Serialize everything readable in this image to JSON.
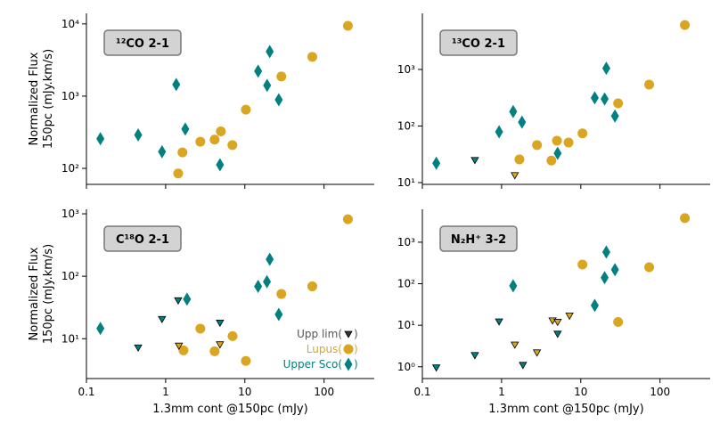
{
  "chart_data": [
    {
      "type": "scatter",
      "panel_label": "¹²CO 2-1",
      "ylabel": [
        "Normalized Flux",
        "150pc (mJy.km/s)"
      ],
      "log_x": true,
      "log_y": true,
      "xlim": [
        0.1,
        430
      ],
      "ylim": [
        60,
        14000
      ],
      "xticks": [
        0.1,
        1,
        10,
        100
      ],
      "show_xtick_labels": false,
      "yticks": [
        {
          "value": 100,
          "label": "10²"
        },
        {
          "value": 1000,
          "label": "10³"
        },
        {
          "value": 10000,
          "label": "10⁴"
        }
      ],
      "series": [
        {
          "marker": "circle",
          "color": "#daa520",
          "x": [
            1.44,
            1.63,
            2.74,
            4.15,
            4.98,
            6.96,
            10.3,
            28.9,
            71,
            200
          ],
          "values": [
            85,
            166,
            234,
            250,
            325,
            210,
            650,
            1870,
            3500,
            9400
          ]
        },
        {
          "marker": "diamond",
          "color": "#008080",
          "x": [
            0.15,
            0.45,
            0.9,
            1.36,
            1.77,
            4.85,
            14.7,
            19.1,
            20.6,
            26.8
          ],
          "values": [
            257,
            290,
            170,
            1450,
            350,
            112,
            2220,
            1410,
            4140,
            890
          ]
        }
      ]
    },
    {
      "type": "scatter",
      "panel_label": "¹³CO 2-1",
      "log_x": true,
      "log_y": true,
      "xlim": [
        0.1,
        430
      ],
      "ylim": [
        9.3,
        9800
      ],
      "xticks": [
        0.1,
        1,
        10,
        100
      ],
      "show_xtick_labels": false,
      "yticks": [
        {
          "value": 10,
          "label": "10¹"
        },
        {
          "value": 100,
          "label": "10²"
        },
        {
          "value": 1000,
          "label": "10³"
        }
      ],
      "series": [
        {
          "marker": "circle",
          "color": "#daa520",
          "x": [
            1.68,
            2.8,
            4.26,
            5,
            7,
            10.5,
            29.6,
            73,
            206
          ],
          "values": [
            25.7,
            46,
            24.5,
            55,
            51,
            74,
            252,
            540,
            6100
          ]
        },
        {
          "marker": "diamond",
          "color": "#008080",
          "x": [
            0.15,
            0.93,
            1.4,
            1.81,
            5.1,
            15,
            20,
            21,
            27
          ],
          "values": [
            22,
            79,
            180,
            117,
            33,
            315,
            300,
            1050,
            150
          ]
        },
        {
          "marker": "triangle",
          "color": "#daa520",
          "x": [
            1.47
          ],
          "values": [
            13.5
          ]
        },
        {
          "marker": "triangle",
          "color": "#008080",
          "x": [
            0.46
          ],
          "values": [
            25
          ]
        }
      ]
    },
    {
      "type": "scatter",
      "panel_label": "C¹⁸O 2-1",
      "ylabel": [
        "Normalized Flux",
        "150pc (mJy.km/s)"
      ],
      "xlabel": "1.3mm cont @150pc (mJy)",
      "log_x": true,
      "log_y": true,
      "xlim": [
        0.1,
        430
      ],
      "ylim": [
        2.3,
        1180
      ],
      "xticks": [
        0.1,
        1,
        10,
        100
      ],
      "show_xtick_labels": true,
      "yticks": [
        {
          "value": 10,
          "label": "10¹"
        },
        {
          "value": 100,
          "label": "10²"
        },
        {
          "value": 1000,
          "label": "10³"
        }
      ],
      "series": [
        {
          "marker": "circle",
          "color": "#daa520",
          "x": [
            1.68,
            2.74,
            4.15,
            7,
            10.3,
            28.9,
            71,
            200
          ],
          "values": [
            6.5,
            14.5,
            6.3,
            11,
            4.4,
            52,
            69,
            820
          ]
        },
        {
          "marker": "diamond",
          "color": "#008080",
          "x": [
            0.15,
            1.86,
            14.7,
            19,
            20.6,
            26.8
          ],
          "values": [
            14.6,
            43,
            69,
            82,
            187,
            24.5
          ]
        },
        {
          "marker": "triangle",
          "color": "#daa520",
          "x": [
            1.47,
            4.85
          ],
          "values": [
            7.7,
            8.1
          ]
        },
        {
          "marker": "triangle",
          "color": "#008080",
          "x": [
            0.45,
            0.9,
            1.44,
            4.85
          ],
          "values": [
            7.2,
            20.6,
            41,
            18
          ]
        }
      ],
      "legend": [
        {
          "label": "Upp lim(",
          "suffix": ")",
          "marker": "triangle",
          "color": "#555555"
        },
        {
          "label": "Lupus(",
          "suffix": ")",
          "marker": "circle",
          "color": "#daa520"
        },
        {
          "label": "Upper Sco(",
          "suffix": ")",
          "marker": "diamond",
          "color": "#008080"
        }
      ]
    },
    {
      "type": "scatter",
      "panel_label": "N₂H⁺ 3-2",
      "xlabel": "1.3mm cont @150pc (mJy)",
      "log_x": true,
      "log_y": true,
      "xlim": [
        0.1,
        430
      ],
      "ylim": [
        0.52,
        6200
      ],
      "xticks": [
        0.1,
        1,
        10,
        100
      ],
      "show_xtick_labels": true,
      "yticks": [
        {
          "value": 1,
          "label": "10⁰"
        },
        {
          "value": 10,
          "label": "10¹"
        },
        {
          "value": 100,
          "label": "10²"
        },
        {
          "value": 1000,
          "label": "10³"
        }
      ],
      "series": [
        {
          "marker": "circle",
          "color": "#daa520",
          "x": [
            10.5,
            29.6,
            73,
            206
          ],
          "values": [
            290,
            12,
            250,
            3800
          ]
        },
        {
          "marker": "diamond",
          "color": "#008080",
          "x": [
            1.4,
            15,
            20,
            21,
            27
          ],
          "values": [
            89,
            30,
            140,
            580,
            218
          ]
        },
        {
          "marker": "triangle",
          "color": "#daa520",
          "x": [
            1.47,
            2.8,
            4.4,
            5.1,
            7.2
          ],
          "values": [
            3.4,
            2.2,
            13,
            12,
            17
          ]
        },
        {
          "marker": "triangle",
          "color": "#008080",
          "x": [
            0.15,
            0.46,
            0.93,
            1.86,
            5.1
          ],
          "values": [
            0.96,
            1.9,
            12.3,
            1.1,
            6.2
          ]
        }
      ]
    }
  ]
}
